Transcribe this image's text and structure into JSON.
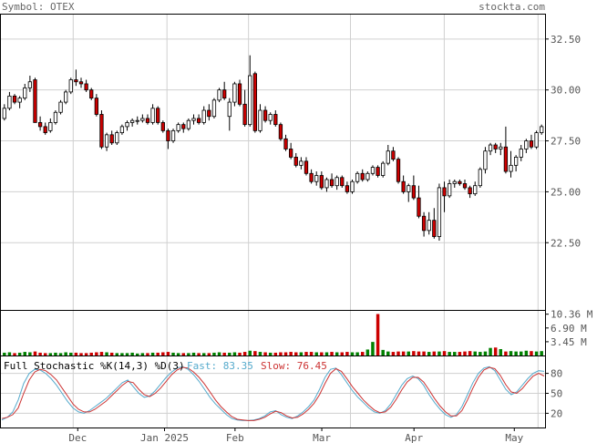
{
  "header": {
    "symbol_text": "Symbol: OTEX",
    "brand": "stockta.com"
  },
  "colors": {
    "up": "#ffffff",
    "down": "#cc0000",
    "vol_up": "#008000",
    "vol_down": "#cc0000",
    "fast": "#55aacc",
    "slow": "#cc3333",
    "grid": "#d0d0d0",
    "frame": "#000000"
  },
  "price_axis": {
    "ticks": [
      "32.50",
      "30.00",
      "27.50",
      "25.00",
      "22.50"
    ]
  },
  "volume_axis": {
    "ticks": [
      "10.36 M",
      "6.90 M",
      "3.45 M"
    ]
  },
  "stoch_axis": {
    "ticks": [
      "80",
      "50",
      "20"
    ]
  },
  "x_axis": {
    "labels": [
      "Dec",
      "Jan 2025",
      "Feb",
      "Mar",
      "Apr",
      "May"
    ]
  },
  "indicator": {
    "title": "Full Stochastic %K(14,3) %D(3)",
    "fast_label": "Fast: 83.35",
    "slow_label": "Slow: 76.45"
  },
  "chart_data": [
    {
      "type": "candlestick",
      "title": "Symbol: OTEX",
      "xlabel": "",
      "ylabel": "",
      "ylim": [
        19.2,
        33.7
      ],
      "x_ticks": [
        "Dec",
        "Jan 2025",
        "Feb",
        "Mar",
        "Apr",
        "May"
      ],
      "y_ticks": [
        22.5,
        25.0,
        27.5,
        30.0,
        32.5
      ],
      "series": [
        {
          "ohlc": [
            [
              28.6,
              29.3,
              28.5,
              29.1
            ],
            [
              29.1,
              29.9,
              29.0,
              29.7
            ],
            [
              29.7,
              29.8,
              29.3,
              29.4
            ],
            [
              29.4,
              29.7,
              29.1,
              29.6
            ],
            [
              29.6,
              30.3,
              29.5,
              30.1
            ],
            [
              30.1,
              30.7,
              29.9,
              30.4
            ],
            [
              30.5,
              30.6,
              28.4,
              28.4
            ],
            [
              28.4,
              28.7,
              28.0,
              28.2
            ],
            [
              28.2,
              28.4,
              27.8,
              27.9
            ],
            [
              28.0,
              28.6,
              27.9,
              28.4
            ],
            [
              28.4,
              29.0,
              28.3,
              28.9
            ],
            [
              28.9,
              29.5,
              28.8,
              29.4
            ],
            [
              29.4,
              30.0,
              29.3,
              29.9
            ],
            [
              29.9,
              30.6,
              29.8,
              30.5
            ],
            [
              30.5,
              31.0,
              30.2,
              30.4
            ],
            [
              30.4,
              30.6,
              30.1,
              30.3
            ],
            [
              30.3,
              30.5,
              29.9,
              30.0
            ],
            [
              30.0,
              30.1,
              29.5,
              29.6
            ],
            [
              29.6,
              29.8,
              28.7,
              28.8
            ],
            [
              28.8,
              29.0,
              27.1,
              27.2
            ],
            [
              27.2,
              27.9,
              27.0,
              27.8
            ],
            [
              27.8,
              28.0,
              27.3,
              27.4
            ],
            [
              27.4,
              28.0,
              27.3,
              27.9
            ],
            [
              27.9,
              28.3,
              27.8,
              28.2
            ],
            [
              28.2,
              28.5,
              28.0,
              28.4
            ],
            [
              28.4,
              28.6,
              28.2,
              28.5
            ],
            [
              28.5,
              28.7,
              28.3,
              28.5
            ],
            [
              28.5,
              28.8,
              28.4,
              28.6
            ],
            [
              28.6,
              28.8,
              28.3,
              28.4
            ],
            [
              28.4,
              29.3,
              28.3,
              29.1
            ],
            [
              29.1,
              29.2,
              28.3,
              28.4
            ],
            [
              28.4,
              28.5,
              27.9,
              28.0
            ],
            [
              28.0,
              28.1,
              27.1,
              27.5
            ],
            [
              27.5,
              28.1,
              27.4,
              28.0
            ],
            [
              28.0,
              28.4,
              27.9,
              28.3
            ],
            [
              28.3,
              28.4,
              27.9,
              28.1
            ],
            [
              28.1,
              28.6,
              28.0,
              28.5
            ],
            [
              28.5,
              28.8,
              28.3,
              28.6
            ],
            [
              28.6,
              28.8,
              28.3,
              28.4
            ],
            [
              28.4,
              29.2,
              28.3,
              29.0
            ],
            [
              29.0,
              29.3,
              28.5,
              28.7
            ],
            [
              28.7,
              29.6,
              28.6,
              29.5
            ],
            [
              29.5,
              30.1,
              29.4,
              30.0
            ],
            [
              30.0,
              30.4,
              29.5,
              29.6
            ],
            [
              28.7,
              29.6,
              28.0,
              29.4
            ],
            [
              29.4,
              30.4,
              29.2,
              30.3
            ],
            [
              30.3,
              30.5,
              29.2,
              29.3
            ],
            [
              29.3,
              30.0,
              28.2,
              28.3
            ],
            [
              28.3,
              31.7,
              28.2,
              30.7
            ],
            [
              30.8,
              30.9,
              27.9,
              28.0
            ],
            [
              28.0,
              29.3,
              27.9,
              29.0
            ],
            [
              29.0,
              29.2,
              28.4,
              28.5
            ],
            [
              28.5,
              28.9,
              28.3,
              28.8
            ],
            [
              28.8,
              29.0,
              28.2,
              28.3
            ],
            [
              28.3,
              28.4,
              27.5,
              27.6
            ],
            [
              27.6,
              27.8,
              27.0,
              27.1
            ],
            [
              27.1,
              27.4,
              26.6,
              26.7
            ],
            [
              26.7,
              26.9,
              26.2,
              26.3
            ],
            [
              26.3,
              26.7,
              26.1,
              26.5
            ],
            [
              26.5,
              26.7,
              25.8,
              25.9
            ],
            [
              25.9,
              26.1,
              25.4,
              25.5
            ],
            [
              25.5,
              26.0,
              25.3,
              25.8
            ],
            [
              25.8,
              26.0,
              25.1,
              25.2
            ],
            [
              25.2,
              25.7,
              25.0,
              25.6
            ],
            [
              25.6,
              25.9,
              25.2,
              25.3
            ],
            [
              25.3,
              25.8,
              25.1,
              25.7
            ],
            [
              25.7,
              25.8,
              25.2,
              25.3
            ],
            [
              25.3,
              25.5,
              24.9,
              25.0
            ],
            [
              25.0,
              25.6,
              24.9,
              25.5
            ],
            [
              25.5,
              26.0,
              25.4,
              25.9
            ],
            [
              25.9,
              26.1,
              25.5,
              25.6
            ],
            [
              25.6,
              26.0,
              25.5,
              25.9
            ],
            [
              25.9,
              26.3,
              25.8,
              26.2
            ],
            [
              26.2,
              26.3,
              25.7,
              25.8
            ],
            [
              25.8,
              26.5,
              25.7,
              26.4
            ],
            [
              26.4,
              27.3,
              26.3,
              27.0
            ],
            [
              27.0,
              27.2,
              26.5,
              26.6
            ],
            [
              26.6,
              26.7,
              25.4,
              25.5
            ],
            [
              25.5,
              25.8,
              24.9,
              25.0
            ],
            [
              25.0,
              25.4,
              24.5,
              25.3
            ],
            [
              25.3,
              25.8,
              24.6,
              24.7
            ],
            [
              24.7,
              25.3,
              23.7,
              23.8
            ],
            [
              23.8,
              24.0,
              22.8,
              23.1
            ],
            [
              23.1,
              24.0,
              22.9,
              23.6
            ],
            [
              23.6,
              24.2,
              22.7,
              22.8
            ],
            [
              22.8,
              25.4,
              22.6,
              25.2
            ],
            [
              25.2,
              25.5,
              24.0,
              24.8
            ],
            [
              24.8,
              25.6,
              24.7,
              25.4
            ],
            [
              25.4,
              25.6,
              25.2,
              25.5
            ],
            [
              25.5,
              25.6,
              25.3,
              25.4
            ],
            [
              25.4,
              25.6,
              25.1,
              25.2
            ],
            [
              25.2,
              25.3,
              24.7,
              24.9
            ],
            [
              24.9,
              25.5,
              24.8,
              25.3
            ],
            [
              25.3,
              26.2,
              25.2,
              26.1
            ],
            [
              26.1,
              27.2,
              25.9,
              27.0
            ],
            [
              27.0,
              27.4,
              26.8,
              27.3
            ],
            [
              27.3,
              27.4,
              26.9,
              27.1
            ],
            [
              27.1,
              27.4,
              26.8,
              27.2
            ],
            [
              27.2,
              28.2,
              25.9,
              26.0
            ],
            [
              26.0,
              27.0,
              25.7,
              26.3
            ],
            [
              26.3,
              26.8,
              26.0,
              26.7
            ],
            [
              26.7,
              27.3,
              26.5,
              27.1
            ],
            [
              27.1,
              27.6,
              26.9,
              27.5
            ],
            [
              27.5,
              27.8,
              27.1,
              27.2
            ],
            [
              27.2,
              28.0,
              27.1,
              27.9
            ],
            [
              27.9,
              28.3,
              27.8,
              28.2
            ]
          ]
        }
      ]
    },
    {
      "type": "bar",
      "title": "",
      "ylim": [
        0,
        11.2
      ],
      "y_ticks": [
        "3.45 M",
        "6.90 M",
        "10.36 M"
      ],
      "series": [
        {
          "values": [
            0.7,
            0.8,
            0.6,
            0.7,
            0.9,
            0.8,
            1.0,
            0.7,
            0.6,
            0.6,
            0.7,
            0.6,
            0.8,
            0.7,
            0.7,
            0.6,
            0.6,
            0.7,
            0.8,
            0.9,
            0.8,
            0.7,
            0.6,
            0.6,
            0.6,
            0.7,
            0.5,
            0.6,
            0.6,
            0.7,
            0.7,
            0.8,
            0.9,
            0.7,
            0.6,
            0.6,
            0.6,
            0.7,
            0.6,
            0.6,
            0.6,
            0.7,
            0.8,
            0.7,
            0.7,
            0.8,
            0.7,
            0.9,
            1.2,
            1.1,
            0.9,
            0.8,
            0.7,
            0.7,
            0.8,
            0.8,
            0.9,
            0.8,
            0.8,
            0.9,
            0.9,
            0.8,
            0.8,
            0.8,
            0.9,
            0.8,
            0.8,
            0.9,
            0.8,
            0.8,
            0.9,
            1.5,
            3.4,
            10.4,
            1.4,
            1.0,
            0.9,
            1.0,
            1.0,
            1.0,
            1.1,
            1.0,
            1.0,
            0.9,
            1.0,
            1.0,
            1.1,
            0.9,
            0.9,
            0.9,
            1.0,
            1.1,
            1.0,
            0.9,
            1.0,
            1.9,
            2.0,
            1.6,
            1.0,
            1.1,
            1.0,
            1.0,
            1.2,
            1.1,
            1.0,
            1.1,
            1.0,
            1.0
          ],
          "directions": "mixed"
        }
      ]
    },
    {
      "type": "line",
      "title": "Full Stochastic %K(14,3) %D(3)",
      "ylim": [
        0,
        100
      ],
      "y_ticks": [
        20,
        50,
        80
      ],
      "series": [
        {
          "name": "Fast",
          "values": [
            10,
            14,
            22,
            40,
            65,
            80,
            86,
            85,
            80,
            72,
            62,
            50,
            38,
            28,
            22,
            20,
            24,
            30,
            36,
            42,
            50,
            58,
            66,
            70,
            60,
            50,
            44,
            46,
            54,
            64,
            74,
            82,
            88,
            90,
            86,
            78,
            68,
            56,
            44,
            34,
            26,
            18,
            12,
            10,
            9,
            9,
            10,
            12,
            16,
            22,
            24,
            18,
            14,
            12,
            16,
            22,
            30,
            40,
            56,
            74,
            86,
            88,
            78,
            66,
            54,
            44,
            36,
            28,
            22,
            20,
            24,
            34,
            48,
            62,
            72,
            76,
            72,
            62,
            48,
            36,
            26,
            18,
            14,
            18,
            30,
            48,
            66,
            80,
            88,
            90,
            84,
            70,
            56,
            48,
            52,
            62,
            72,
            80,
            84,
            83
          ]
        },
        {
          "name": "Slow",
          "values": [
            12,
            14,
            18,
            28,
            50,
            70,
            82,
            86,
            84,
            78,
            70,
            58,
            46,
            34,
            26,
            22,
            22,
            26,
            32,
            38,
            46,
            54,
            62,
            68,
            66,
            56,
            48,
            45,
            50,
            58,
            68,
            78,
            85,
            89,
            88,
            82,
            74,
            64,
            52,
            40,
            30,
            22,
            15,
            11,
            10,
            9,
            9,
            11,
            14,
            19,
            23,
            21,
            16,
            13,
            14,
            19,
            26,
            35,
            48,
            65,
            80,
            87,
            83,
            72,
            60,
            50,
            40,
            32,
            25,
            21,
            22,
            29,
            41,
            55,
            67,
            74,
            74,
            67,
            55,
            42,
            31,
            22,
            16,
            16,
            24,
            40,
            58,
            74,
            85,
            89,
            87,
            77,
            63,
            52,
            50,
            57,
            67,
            76,
            80,
            76
          ]
        }
      ]
    }
  ]
}
